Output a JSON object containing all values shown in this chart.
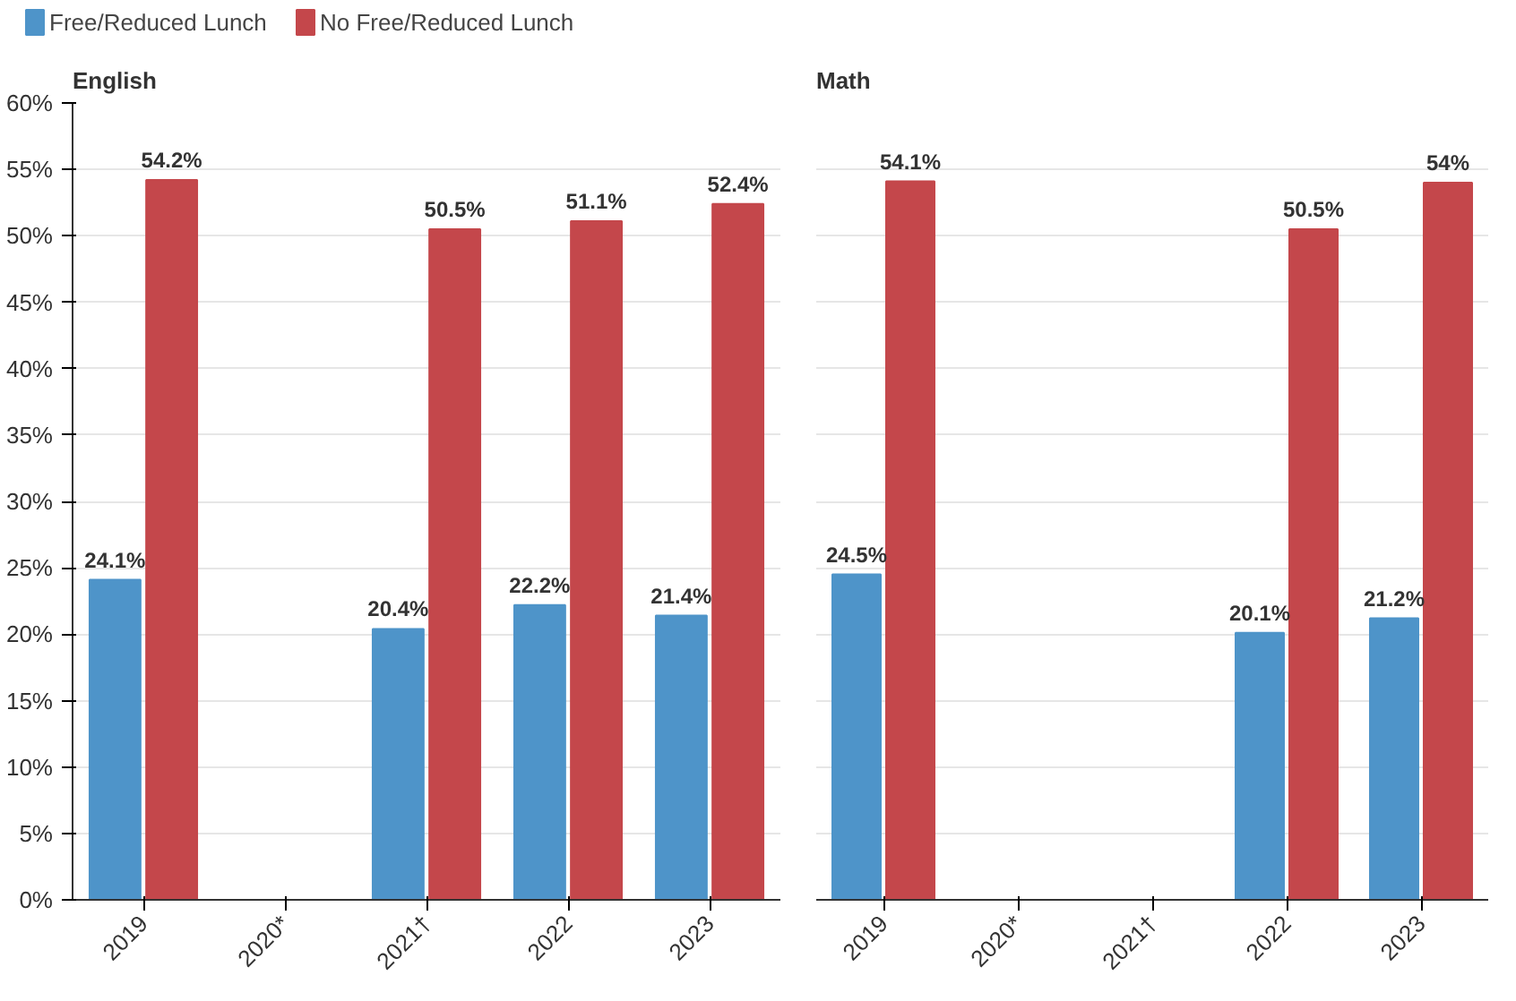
{
  "chart_data": [
    {
      "type": "bar",
      "title": "English",
      "categories": [
        "2019",
        "2020*",
        "2021†",
        "2022",
        "2023"
      ],
      "series": [
        {
          "name": "Free/Reduced Lunch",
          "color": "#4e94c9",
          "values": [
            24.1,
            null,
            20.4,
            22.2,
            21.4
          ],
          "value_labels": [
            "24.1%",
            null,
            "20.4%",
            "22.2%",
            "21.4%"
          ]
        },
        {
          "name": "No Free/Reduced Lunch",
          "color": "#c4474b",
          "values": [
            54.2,
            null,
            50.5,
            51.1,
            52.4
          ],
          "value_labels": [
            "54.2%",
            null,
            "50.5%",
            "51.1%",
            "52.4%"
          ]
        }
      ],
      "ylim": [
        0,
        60
      ],
      "yticks": [
        {
          "value": 0,
          "label": "0%"
        },
        {
          "value": 5,
          "label": "5%"
        },
        {
          "value": 10,
          "label": "10%"
        },
        {
          "value": 15,
          "label": "15%"
        },
        {
          "value": 20,
          "label": "20%"
        },
        {
          "value": 25,
          "label": "25%"
        },
        {
          "value": 30,
          "label": "30%"
        },
        {
          "value": 35,
          "label": "35%"
        },
        {
          "value": 40,
          "label": "40%"
        },
        {
          "value": 45,
          "label": "45%"
        },
        {
          "value": 50,
          "label": "50%"
        },
        {
          "value": 55,
          "label": "55%"
        },
        {
          "value": 60,
          "label": "60%"
        }
      ],
      "grid": "y",
      "legend": "top"
    },
    {
      "type": "bar",
      "title": "Math",
      "categories": [
        "2019",
        "2020*",
        "2021†",
        "2022",
        "2023"
      ],
      "series": [
        {
          "color": "#4e94c9",
          "values": [
            24.5,
            null,
            null,
            20.1,
            21.2
          ],
          "value_labels": [
            "24.5%",
            null,
            null,
            "20.1%",
            "21.2%"
          ]
        },
        {
          "color": "#c4474b",
          "values": [
            54.1,
            null,
            null,
            50.5,
            54
          ],
          "value_labels": [
            "54.1%",
            null,
            null,
            "50.5%",
            "54%"
          ]
        }
      ],
      "ylim": [
        0,
        60
      ],
      "yticks": [
        0,
        5,
        10,
        15,
        20,
        25,
        30,
        35,
        40,
        45,
        50,
        55,
        60
      ],
      "grid": "y",
      "tick_labels": "x"
    }
  ]
}
